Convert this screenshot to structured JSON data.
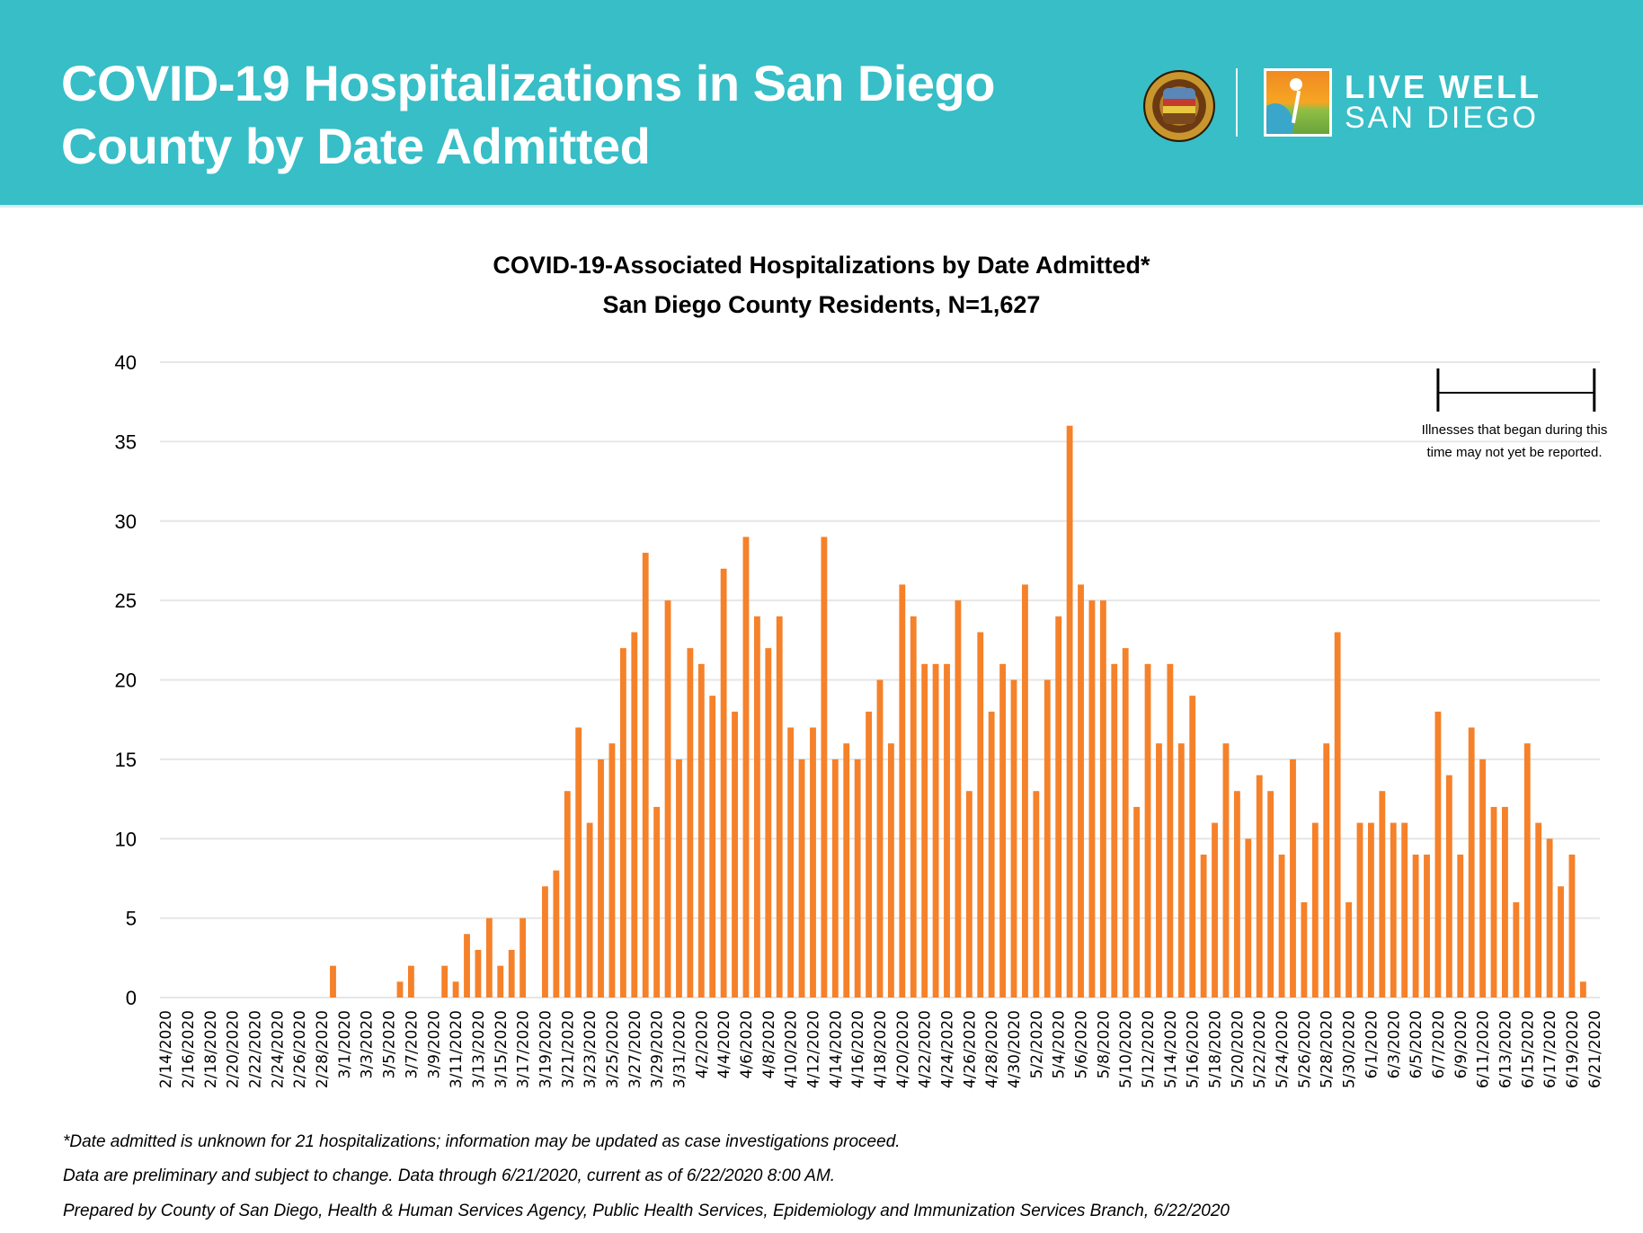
{
  "banner": {
    "title_line1": "COVID-19 Hospitalizations in San Diego",
    "title_line2": "County by Date Admitted",
    "logo_line1": "LIVE WELL",
    "logo_line2": "SAN DIEGO",
    "background_color": "#37bec7"
  },
  "annotation": {
    "text": "Illnesses that began during this time may not yet be reported.",
    "range_start": "6/7/2020",
    "range_end": "6/21/2020"
  },
  "footnotes": {
    "line1": "*Date admitted is unknown for 21 hospitalizations; information may be updated as case investigations proceed.",
    "line2": "Data are preliminary and subject to change. Data through 6/21/2020,  current as of 6/22/2020 8:00 AM.",
    "line3": "Prepared by County of San Diego, Health & Human Services Agency, Public Health Services, Epidemiology and Immunization Services Branch, 6/22/2020"
  },
  "chart_data": {
    "type": "bar",
    "title": "COVID-19-Associated Hospitalizations by Date Admitted*",
    "subtitle": "San Diego County Residents, N=1,627",
    "xlabel": "",
    "ylabel": "",
    "ylim": [
      0,
      40
    ],
    "yticks": [
      0,
      5,
      10,
      15,
      20,
      25,
      30,
      35,
      40
    ],
    "grid": true,
    "bar_color": "#f5812a",
    "start_date": "2/14/2020",
    "tick_label_every": 2,
    "categories": [
      "2/14/2020",
      "2/15/2020",
      "2/16/2020",
      "2/17/2020",
      "2/18/2020",
      "2/19/2020",
      "2/20/2020",
      "2/21/2020",
      "2/22/2020",
      "2/23/2020",
      "2/24/2020",
      "2/25/2020",
      "2/26/2020",
      "2/27/2020",
      "2/28/2020",
      "2/29/2020",
      "3/1/2020",
      "3/2/2020",
      "3/3/2020",
      "3/4/2020",
      "3/5/2020",
      "3/6/2020",
      "3/7/2020",
      "3/8/2020",
      "3/9/2020",
      "3/10/2020",
      "3/11/2020",
      "3/12/2020",
      "3/13/2020",
      "3/14/2020",
      "3/15/2020",
      "3/16/2020",
      "3/17/2020",
      "3/18/2020",
      "3/19/2020",
      "3/20/2020",
      "3/21/2020",
      "3/22/2020",
      "3/23/2020",
      "3/24/2020",
      "3/25/2020",
      "3/26/2020",
      "3/27/2020",
      "3/28/2020",
      "3/29/2020",
      "3/30/2020",
      "3/31/2020",
      "4/1/2020",
      "4/2/2020",
      "4/3/2020",
      "4/4/2020",
      "4/5/2020",
      "4/6/2020",
      "4/7/2020",
      "4/8/2020",
      "4/9/2020",
      "4/10/2020",
      "4/11/2020",
      "4/12/2020",
      "4/13/2020",
      "4/14/2020",
      "4/15/2020",
      "4/16/2020",
      "4/17/2020",
      "4/18/2020",
      "4/19/2020",
      "4/20/2020",
      "4/21/2020",
      "4/22/2020",
      "4/23/2020",
      "4/24/2020",
      "4/25/2020",
      "4/26/2020",
      "4/27/2020",
      "4/28/2020",
      "4/29/2020",
      "4/30/2020",
      "5/1/2020",
      "5/2/2020",
      "5/3/2020",
      "5/4/2020",
      "5/5/2020",
      "5/6/2020",
      "5/7/2020",
      "5/8/2020",
      "5/9/2020",
      "5/10/2020",
      "5/11/2020",
      "5/12/2020",
      "5/13/2020",
      "5/14/2020",
      "5/15/2020",
      "5/16/2020",
      "5/17/2020",
      "5/18/2020",
      "5/19/2020",
      "5/20/2020",
      "5/21/2020",
      "5/22/2020",
      "5/23/2020",
      "5/24/2020",
      "5/25/2020",
      "5/26/2020",
      "5/27/2020",
      "5/28/2020",
      "5/29/2020",
      "5/30/2020",
      "5/31/2020",
      "6/1/2020",
      "6/2/2020",
      "6/3/2020",
      "6/4/2020",
      "6/5/2020",
      "6/6/2020",
      "6/7/2020",
      "6/8/2020",
      "6/9/2020",
      "6/10/2020",
      "6/11/2020",
      "6/12/2020",
      "6/13/2020",
      "6/14/2020",
      "6/15/2020",
      "6/16/2020",
      "6/17/2020",
      "6/18/2020",
      "6/19/2020",
      "6/20/2020",
      "6/21/2020"
    ],
    "values": [
      0,
      0,
      0,
      0,
      0,
      0,
      0,
      0,
      0,
      0,
      0,
      0,
      0,
      0,
      0,
      2,
      0,
      0,
      0,
      0,
      0,
      1,
      2,
      0,
      0,
      2,
      1,
      4,
      3,
      5,
      2,
      3,
      5,
      0,
      7,
      8,
      13,
      17,
      11,
      15,
      16,
      22,
      23,
      28,
      12,
      25,
      15,
      22,
      21,
      19,
      27,
      18,
      29,
      24,
      22,
      24,
      17,
      15,
      17,
      29,
      15,
      16,
      15,
      18,
      20,
      16,
      26,
      24,
      21,
      21,
      21,
      25,
      13,
      23,
      18,
      21,
      20,
      26,
      13,
      20,
      24,
      36,
      26,
      25,
      25,
      21,
      22,
      12,
      21,
      16,
      21,
      16,
      19,
      9,
      11,
      16,
      13,
      10,
      14,
      13,
      9,
      15,
      6,
      11,
      16,
      23,
      6,
      11,
      11,
      13,
      11,
      11,
      9,
      9,
      18,
      14,
      9,
      17,
      15,
      12,
      12,
      6,
      16,
      11,
      10,
      7,
      9,
      1,
      0
    ]
  }
}
